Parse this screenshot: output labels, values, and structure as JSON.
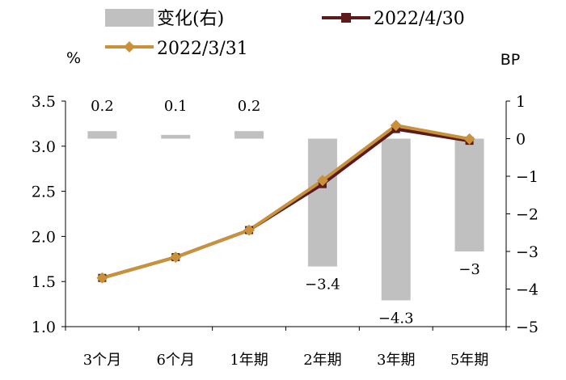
{
  "chart_data": {
    "type": "bar+line",
    "categories": [
      "3个月",
      "6个月",
      "1年期",
      "2年期",
      "3年期",
      "5年期"
    ],
    "series": [
      {
        "name": "变化(右)",
        "kind": "bar",
        "axis": "right",
        "color": "#c0c0c0",
        "values": [
          0.2,
          0.1,
          0.2,
          -3.4,
          -4.3,
          -3
        ],
        "labels": [
          "0.2",
          "0.1",
          "0.2",
          "-3.4",
          "-4.3",
          "-3"
        ]
      },
      {
        "name": "2022/4/30",
        "kind": "line",
        "axis": "left",
        "color": "#5c1a1a",
        "marker": "square",
        "values": [
          1.54,
          1.77,
          2.07,
          2.58,
          3.19,
          3.06
        ]
      },
      {
        "name": "2022/3/31",
        "kind": "line",
        "axis": "left",
        "color": "#c8913a",
        "marker": "diamond",
        "values": [
          1.54,
          1.77,
          2.07,
          2.62,
          3.23,
          3.08
        ]
      }
    ],
    "left_axis": {
      "unit": "%",
      "min": 1.0,
      "max": 3.5,
      "step": 0.5,
      "ticks": [
        "1.0",
        "1.5",
        "2.0",
        "2.5",
        "3.0",
        "3.5"
      ]
    },
    "right_axis": {
      "unit": "BP",
      "min": -5,
      "max": 1,
      "step": 1,
      "ticks": [
        "-5",
        "-4",
        "-3",
        "-2",
        "-1",
        "0",
        "1"
      ]
    },
    "grid": false,
    "legend_position": "top"
  }
}
